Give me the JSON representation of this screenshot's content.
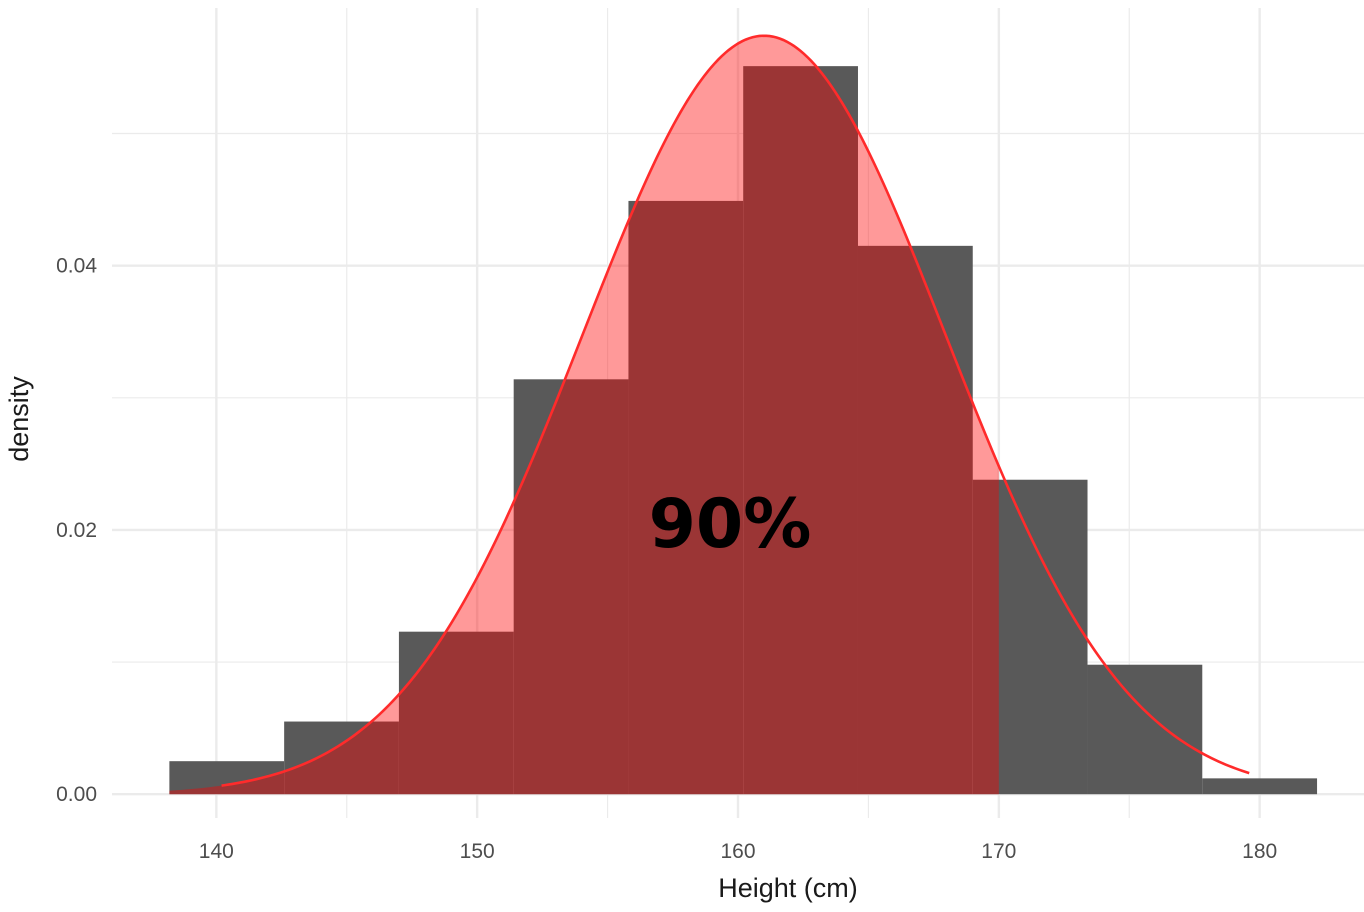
{
  "chart_data": {
    "type": "bar",
    "subtype": "histogram-with-normal-density",
    "xlabel": "Height (cm)",
    "ylabel": "density",
    "xlim": [
      136,
      184
    ],
    "ylim": [
      -0.0018,
      0.0595
    ],
    "x_ticks": [
      140,
      150,
      160,
      170,
      180
    ],
    "x_tick_labels": [
      "140",
      "150",
      "160",
      "170",
      "180"
    ],
    "y_ticks": [
      0.0,
      0.02,
      0.04
    ],
    "y_tick_labels": [
      "0.00",
      "0.02",
      "0.04"
    ],
    "grid": true,
    "histogram": {
      "bin_width": 4.4,
      "bins": [
        {
          "start": 138.2,
          "end": 142.6,
          "density": 0.0025
        },
        {
          "start": 142.6,
          "end": 147.0,
          "density": 0.0055
        },
        {
          "start": 147.0,
          "end": 151.4,
          "density": 0.0123
        },
        {
          "start": 151.4,
          "end": 155.8,
          "density": 0.0314
        },
        {
          "start": 155.8,
          "end": 160.2,
          "density": 0.0449
        },
        {
          "start": 160.2,
          "end": 164.6,
          "density": 0.0551
        },
        {
          "start": 164.6,
          "end": 169.0,
          "density": 0.0415
        },
        {
          "start": 169.0,
          "end": 173.4,
          "density": 0.0238
        },
        {
          "start": 173.4,
          "end": 177.8,
          "density": 0.0098
        },
        {
          "start": 177.8,
          "end": 182.2,
          "density": 0.0012
        }
      ]
    },
    "normal_curve": {
      "mean": 161.0,
      "sd": 6.95,
      "x_range": [
        140.2,
        179.6
      ]
    },
    "shaded_region": {
      "x_start": 138.2,
      "x_end": 170.0
    },
    "annotation": {
      "text": "90%",
      "x": 160,
      "y": 0.019
    }
  },
  "colors": {
    "background": "#ffffff",
    "grid": "#ebebeb",
    "bar_fill": "#595959",
    "shade_fill": "rgba(255,0,0,0.4)",
    "curve": "#ff2b2b"
  }
}
